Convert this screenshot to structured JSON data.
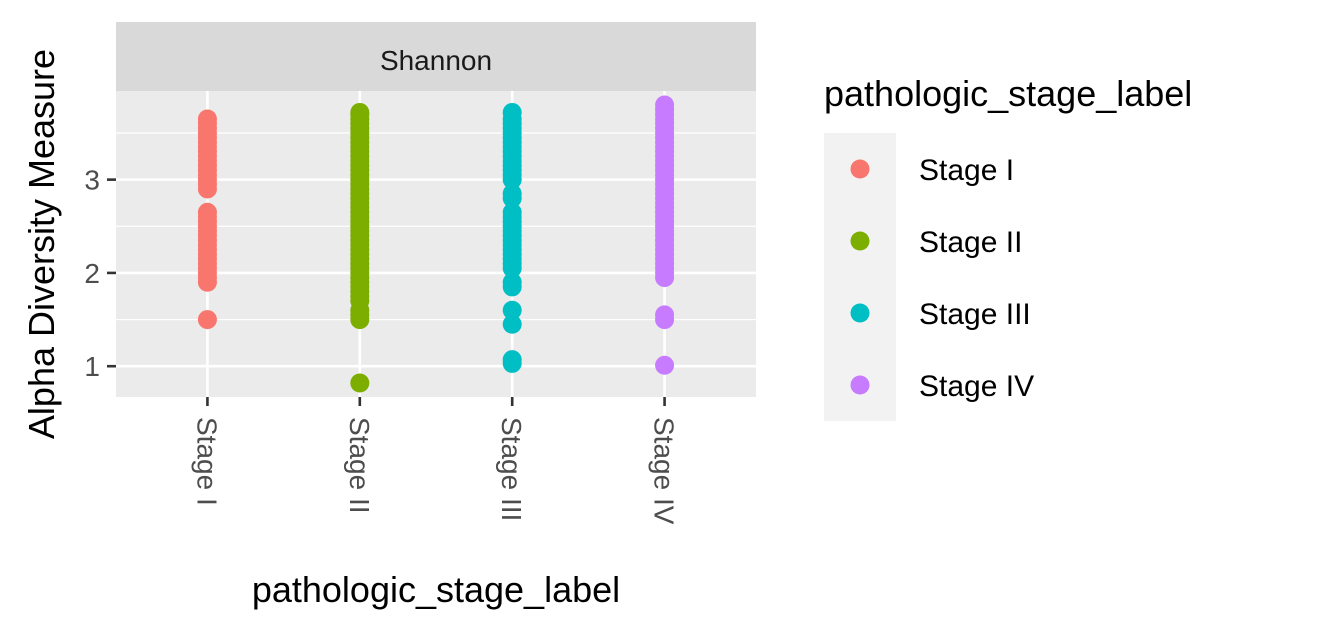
{
  "chart_data": {
    "type": "scatter",
    "facet_label": "Shannon",
    "xlabel": "pathologic_stage_label",
    "ylabel": "Alpha Diversity Measure",
    "categories": [
      "Stage I",
      "Stage II",
      "Stage III",
      "Stage IV"
    ],
    "y_ticks": [
      1,
      2,
      3
    ],
    "ylim": [
      0.67,
      3.95
    ],
    "grid": true,
    "legend": {
      "title": "pathologic_stage_label",
      "placement": "right",
      "entries": [
        "Stage I",
        "Stage II",
        "Stage III",
        "Stage IV"
      ]
    },
    "colors": [
      "#F8766D",
      "#7CAE00",
      "#00BFC4",
      "#C77CFF"
    ],
    "series": [
      {
        "category": "Stage I",
        "values": [
          1.5,
          1.9,
          1.95,
          2.0,
          2.05,
          2.1,
          2.15,
          2.2,
          2.25,
          2.3,
          2.35,
          2.4,
          2.45,
          2.5,
          2.55,
          2.6,
          2.65,
          2.9,
          2.95,
          3.0,
          3.05,
          3.1,
          3.15,
          3.2,
          3.25,
          3.3,
          3.35,
          3.4,
          3.45,
          3.5,
          3.55,
          3.6,
          3.65
        ]
      },
      {
        "category": "Stage II",
        "values": [
          0.82,
          1.5,
          1.55,
          1.6,
          1.7,
          1.75,
          1.8,
          1.85,
          1.9,
          1.95,
          2.0,
          2.05,
          2.1,
          2.15,
          2.2,
          2.25,
          2.3,
          2.35,
          2.4,
          2.45,
          2.5,
          2.55,
          2.6,
          2.65,
          2.7,
          2.75,
          2.8,
          2.85,
          2.9,
          2.95,
          3.0,
          3.05,
          3.1,
          3.15,
          3.2,
          3.25,
          3.3,
          3.35,
          3.4,
          3.45,
          3.5,
          3.55,
          3.6,
          3.65,
          3.7,
          3.72
        ]
      },
      {
        "category": "Stage III",
        "values": [
          1.03,
          1.07,
          1.45,
          1.6,
          1.85,
          1.9,
          2.05,
          2.1,
          2.15,
          2.2,
          2.25,
          2.3,
          2.35,
          2.4,
          2.45,
          2.5,
          2.55,
          2.6,
          2.65,
          2.8,
          2.85,
          3.0,
          3.05,
          3.1,
          3.15,
          3.2,
          3.25,
          3.3,
          3.35,
          3.4,
          3.45,
          3.5,
          3.55,
          3.6,
          3.65,
          3.72
        ]
      },
      {
        "category": "Stage IV",
        "values": [
          1.01,
          1.5,
          1.55,
          1.95,
          2.0,
          2.05,
          2.1,
          2.15,
          2.2,
          2.25,
          2.3,
          2.35,
          2.4,
          2.45,
          2.5,
          2.55,
          2.6,
          2.65,
          2.7,
          2.75,
          2.8,
          2.85,
          2.9,
          2.95,
          3.0,
          3.05,
          3.1,
          3.15,
          3.2,
          3.25,
          3.3,
          3.35,
          3.4,
          3.45,
          3.5,
          3.55,
          3.6,
          3.65,
          3.7,
          3.75,
          3.8
        ]
      }
    ]
  }
}
